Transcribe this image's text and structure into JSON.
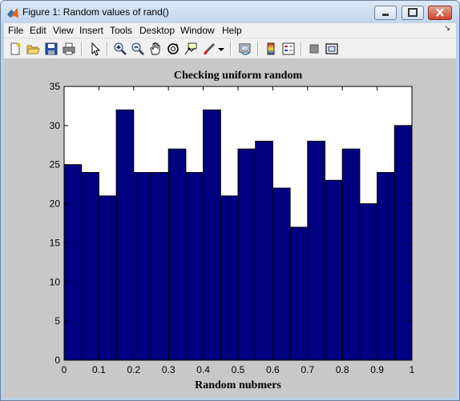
{
  "window": {
    "title": "Figure 1: Random values of rand()"
  },
  "menu": {
    "items": [
      "File",
      "Edit",
      "View",
      "Insert",
      "Tools",
      "Desktop",
      "Window",
      "Help"
    ],
    "pin_icon": "dock-arrow-icon"
  },
  "toolbar": {
    "icons": [
      "new-figure-icon",
      "open-file-icon",
      "save-icon",
      "print-icon",
      "edit-plot-arrow-icon",
      "zoom-in-icon",
      "zoom-out-icon",
      "pan-hand-icon",
      "rotate-3d-icon",
      "data-cursor-icon",
      "brush-icon",
      "link-plot-icon",
      "colorbar-icon",
      "legend-icon",
      "hide-plot-tools-icon",
      "show-plot-tools-icon"
    ]
  },
  "colors": {
    "bar_fill": "#000080",
    "axes_bg": "#ffffff",
    "figure_bg": "#c8c8c8"
  },
  "chart_data": {
    "type": "bar",
    "title": "Checking uniform random",
    "xlabel": "Random nubmers",
    "ylabel": "",
    "xlim": [
      0,
      1
    ],
    "ylim": [
      0,
      35
    ],
    "xticks": [
      "0",
      "0.1",
      "0.2",
      "0.3",
      "0.4",
      "0.5",
      "0.6",
      "0.7",
      "0.8",
      "0.9",
      "1"
    ],
    "yticks": [
      "0",
      "5",
      "10",
      "15",
      "20",
      "25",
      "30",
      "35"
    ],
    "bin_edges_start": 0,
    "bin_width": 0.05,
    "values": [
      25,
      24,
      21,
      32,
      24,
      24,
      27,
      24,
      32,
      21,
      27,
      28,
      22,
      17,
      28,
      23,
      27,
      20,
      24,
      30
    ],
    "grid": false,
    "legend": "none"
  }
}
